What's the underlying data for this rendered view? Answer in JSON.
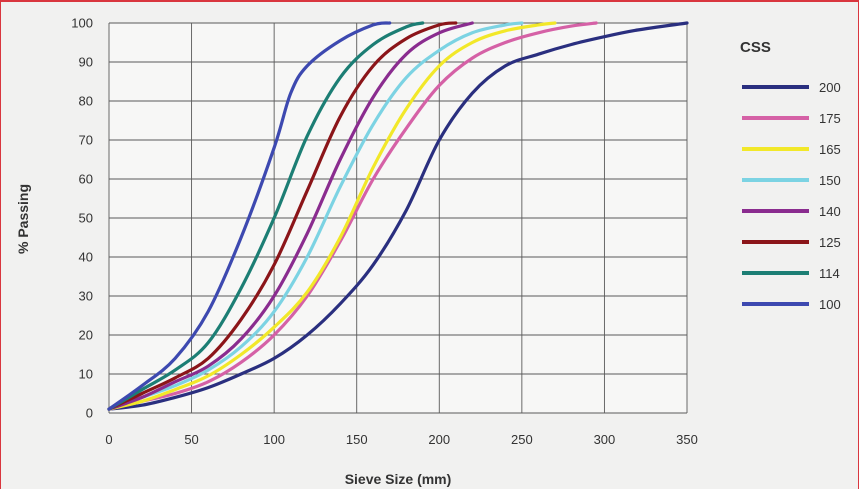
{
  "chart_data": {
    "type": "line",
    "title": "",
    "xlabel": "Sieve Size (mm)",
    "ylabel": "% Passing",
    "xlim": [
      0,
      350
    ],
    "ylim": [
      0,
      100
    ],
    "xticks": [
      0,
      50,
      100,
      150,
      200,
      250,
      300,
      350
    ],
    "yticks": [
      0,
      10,
      20,
      30,
      40,
      50,
      60,
      70,
      80,
      90,
      100
    ],
    "grid": true,
    "legend": {
      "title": "CSS",
      "position": "right"
    },
    "series": [
      {
        "name": "200",
        "color": "#2a2f7f",
        "points": [
          [
            0,
            1
          ],
          [
            20,
            2
          ],
          [
            40,
            4
          ],
          [
            60,
            6.5
          ],
          [
            80,
            10
          ],
          [
            100,
            14
          ],
          [
            120,
            20
          ],
          [
            140,
            28
          ],
          [
            160,
            38
          ],
          [
            180,
            52
          ],
          [
            200,
            70
          ],
          [
            220,
            82
          ],
          [
            240,
            89
          ],
          [
            260,
            92
          ],
          [
            280,
            94.5
          ],
          [
            300,
            96.5
          ],
          [
            320,
            98.2
          ],
          [
            350,
            100
          ]
        ]
      },
      {
        "name": "175",
        "color": "#d561a6",
        "points": [
          [
            0,
            1
          ],
          [
            20,
            3
          ],
          [
            40,
            5
          ],
          [
            60,
            8
          ],
          [
            80,
            13
          ],
          [
            100,
            20
          ],
          [
            120,
            30
          ],
          [
            140,
            44
          ],
          [
            160,
            60
          ],
          [
            180,
            73
          ],
          [
            200,
            84
          ],
          [
            220,
            91
          ],
          [
            240,
            95
          ],
          [
            260,
            97.5
          ],
          [
            280,
            99.2
          ],
          [
            295,
            100
          ]
        ]
      },
      {
        "name": "165",
        "color": "#f2e829",
        "points": [
          [
            0,
            1
          ],
          [
            20,
            3
          ],
          [
            40,
            6
          ],
          [
            60,
            9.5
          ],
          [
            80,
            15
          ],
          [
            100,
            22
          ],
          [
            120,
            31
          ],
          [
            140,
            45
          ],
          [
            160,
            63
          ],
          [
            180,
            78
          ],
          [
            200,
            89
          ],
          [
            220,
            95
          ],
          [
            240,
            98
          ],
          [
            260,
            99.5
          ],
          [
            270,
            100
          ]
        ]
      },
      {
        "name": "150",
        "color": "#7cd3e3",
        "points": [
          [
            0,
            1
          ],
          [
            20,
            4
          ],
          [
            40,
            7
          ],
          [
            60,
            11
          ],
          [
            80,
            17
          ],
          [
            100,
            26
          ],
          [
            120,
            40
          ],
          [
            140,
            58
          ],
          [
            160,
            74
          ],
          [
            180,
            86
          ],
          [
            200,
            93
          ],
          [
            220,
            97.5
          ],
          [
            240,
            99.5
          ],
          [
            250,
            100
          ]
        ]
      },
      {
        "name": "140",
        "color": "#8a2c8f",
        "points": [
          [
            0,
            1
          ],
          [
            20,
            4
          ],
          [
            40,
            8
          ],
          [
            60,
            12
          ],
          [
            80,
            19
          ],
          [
            100,
            30
          ],
          [
            120,
            46
          ],
          [
            140,
            65
          ],
          [
            160,
            81
          ],
          [
            180,
            92
          ],
          [
            200,
            97.5
          ],
          [
            220,
            100
          ]
        ]
      },
      {
        "name": "125",
        "color": "#8b1519",
        "points": [
          [
            0,
            1
          ],
          [
            20,
            5
          ],
          [
            40,
            9
          ],
          [
            60,
            14
          ],
          [
            80,
            24
          ],
          [
            100,
            38
          ],
          [
            120,
            57
          ],
          [
            140,
            76
          ],
          [
            160,
            89
          ],
          [
            180,
            96
          ],
          [
            200,
            99.5
          ],
          [
            210,
            100
          ]
        ]
      },
      {
        "name": "114",
        "color": "#1c7e74",
        "points": [
          [
            0,
            1
          ],
          [
            20,
            6
          ],
          [
            40,
            11
          ],
          [
            60,
            18
          ],
          [
            80,
            32
          ],
          [
            100,
            50
          ],
          [
            120,
            71
          ],
          [
            140,
            86
          ],
          [
            160,
            94.5
          ],
          [
            180,
            99
          ],
          [
            190,
            100
          ]
        ]
      },
      {
        "name": "100",
        "color": "#3d49b0",
        "points": [
          [
            0,
            1
          ],
          [
            20,
            7
          ],
          [
            40,
            14
          ],
          [
            60,
            26
          ],
          [
            80,
            45
          ],
          [
            100,
            68
          ],
          [
            110,
            82
          ],
          [
            120,
            89
          ],
          [
            140,
            95.5
          ],
          [
            160,
            99.5
          ],
          [
            170,
            100
          ]
        ]
      }
    ]
  }
}
